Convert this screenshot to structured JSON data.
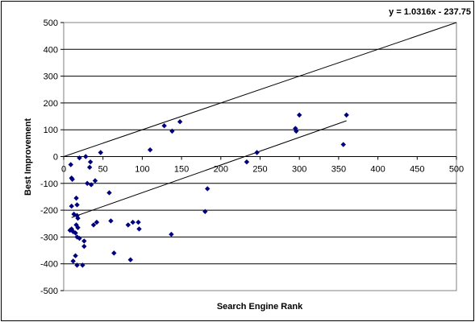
{
  "chart_data": {
    "type": "scatter",
    "title": "",
    "xlabel": "Search Engine Rank",
    "ylabel": "Best Improvement",
    "xlim": [
      0,
      500
    ],
    "ylim": [
      -500,
      500
    ],
    "x_ticks": [
      "0",
      "50",
      "100",
      "150",
      "200",
      "250",
      "300",
      "350",
      "400",
      "450",
      "500"
    ],
    "y_ticks": [
      "500",
      "400",
      "300",
      "200",
      "100",
      "0",
      "-100",
      "-200",
      "-300",
      "-400",
      "-500"
    ],
    "grid": "horizontal",
    "legend": "none",
    "point_color": "#00007f",
    "equation_label": "y = 1.0316x - 237.75",
    "lines": [
      {
        "role": "reference",
        "slope": 1.0,
        "intercept": 0,
        "x_range": [
          0,
          500
        ]
      },
      {
        "role": "trendline",
        "slope": 1.0316,
        "intercept": -237.75,
        "x_range": [
          10,
          360
        ]
      }
    ],
    "points": [
      [
        9,
        -30
      ],
      [
        10,
        -80
      ],
      [
        11,
        -85
      ],
      [
        8,
        -275
      ],
      [
        10,
        -270
      ],
      [
        12,
        -280
      ],
      [
        10,
        -185
      ],
      [
        16,
        -155
      ],
      [
        17,
        -180
      ],
      [
        18,
        -230
      ],
      [
        17,
        -220
      ],
      [
        20,
        -5
      ],
      [
        28,
        0
      ],
      [
        33,
        -40
      ],
      [
        34,
        -20
      ],
      [
        30,
        -100
      ],
      [
        35,
        -105
      ],
      [
        40,
        -90
      ],
      [
        38,
        -255
      ],
      [
        42,
        -245
      ],
      [
        47,
        15
      ],
      [
        13,
        -215
      ],
      [
        15,
        -285
      ],
      [
        16,
        -255
      ],
      [
        17,
        -300
      ],
      [
        18,
        -265
      ],
      [
        20,
        -305
      ],
      [
        26,
        -315
      ],
      [
        26,
        -335
      ],
      [
        24,
        -405
      ],
      [
        12,
        -390
      ],
      [
        15,
        -370
      ],
      [
        17,
        -405
      ],
      [
        58,
        -135
      ],
      [
        60,
        -240
      ],
      [
        64,
        -360
      ],
      [
        82,
        -255
      ],
      [
        88,
        -245
      ],
      [
        85,
        -385
      ],
      [
        95,
        -245
      ],
      [
        96,
        -270
      ],
      [
        110,
        25
      ],
      [
        128,
        115
      ],
      [
        138,
        95
      ],
      [
        148,
        130
      ],
      [
        137,
        -290
      ],
      [
        180,
        -205
      ],
      [
        183,
        -120
      ],
      [
        233,
        -20
      ],
      [
        246,
        15
      ],
      [
        295,
        105
      ],
      [
        296,
        95
      ],
      [
        300,
        155
      ],
      [
        356,
        45
      ],
      [
        360,
        155
      ]
    ]
  }
}
